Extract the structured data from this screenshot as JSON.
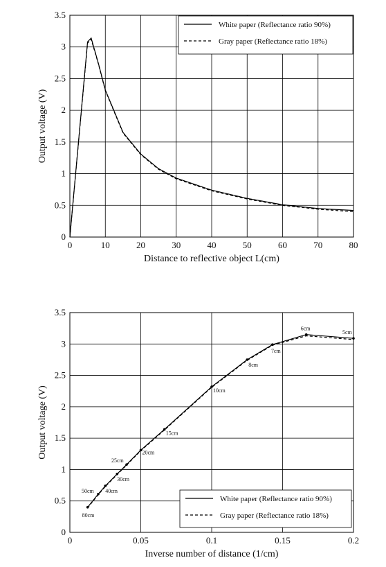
{
  "chart_data": [
    {
      "type": "line",
      "xlabel": "Distance to reflective object L(cm)",
      "ylabel": "Output voltage (V)",
      "xlim": [
        0,
        80
      ],
      "ylim": [
        0,
        3.5
      ],
      "xticks": [
        "0",
        "10",
        "20",
        "30",
        "40",
        "50",
        "60",
        "70",
        "80"
      ],
      "yticks": [
        "0",
        "0.5",
        "1",
        "1.5",
        "2",
        "2.5",
        "3",
        "3.5"
      ],
      "grid": true,
      "legend_position": "top-right",
      "series": [
        {
          "name": "White paper (Reflectance ratio 90%)",
          "style": "solid",
          "x": [
            0,
            5,
            6,
            8,
            10,
            15,
            20,
            25,
            30,
            40,
            50,
            60,
            70,
            80
          ],
          "y": [
            0,
            3.08,
            3.14,
            2.75,
            2.32,
            1.65,
            1.31,
            1.08,
            0.93,
            0.74,
            0.61,
            0.51,
            0.45,
            0.42
          ]
        },
        {
          "name": "Gray paper (Reflectance ratio 18%)",
          "style": "dashed",
          "x": [
            0,
            5,
            6,
            8,
            10,
            15,
            20,
            25,
            30,
            40,
            50,
            60,
            70,
            80
          ],
          "y": [
            0,
            3.06,
            3.12,
            2.74,
            2.31,
            1.64,
            1.3,
            1.07,
            0.92,
            0.73,
            0.6,
            0.5,
            0.44,
            0.4
          ]
        }
      ]
    },
    {
      "type": "line",
      "xlabel": "Inverse number of distance (1/cm)",
      "ylabel": "Output voltage (V)",
      "xlim": [
        0,
        0.2
      ],
      "ylim": [
        0,
        3.5
      ],
      "xticks": [
        "0",
        "0.05",
        "0.1",
        "0.15",
        "0.2"
      ],
      "yticks": [
        "0",
        "0.5",
        "1",
        "1.5",
        "2",
        "2.5",
        "3",
        "3.5"
      ],
      "grid": true,
      "legend_position": "bottom-right",
      "point_labels": [
        "80cm",
        "50cm",
        "40cm",
        "30cm",
        "25cm",
        "20cm",
        "15cm",
        "10cm",
        "8cm",
        "7cm",
        "6cm",
        "5cm"
      ],
      "series": [
        {
          "name": "White paper (Reflectance ratio 90%)",
          "style": "solid",
          "x": [
            0.0125,
            0.02,
            0.025,
            0.0333,
            0.04,
            0.05,
            0.0667,
            0.1,
            0.125,
            0.1429,
            0.1667,
            0.2
          ],
          "y": [
            0.4,
            0.61,
            0.74,
            0.93,
            1.08,
            1.31,
            1.64,
            2.32,
            2.75,
            2.99,
            3.15,
            3.09
          ]
        },
        {
          "name": "Gray paper (Reflectance ratio 18%)",
          "style": "dashed",
          "x": [
            0.0125,
            0.02,
            0.025,
            0.0333,
            0.04,
            0.05,
            0.0667,
            0.1,
            0.125,
            0.1429,
            0.1667,
            0.2
          ],
          "y": [
            0.39,
            0.6,
            0.73,
            0.92,
            1.07,
            1.3,
            1.63,
            2.31,
            2.74,
            2.98,
            3.13,
            3.07
          ]
        }
      ]
    }
  ]
}
